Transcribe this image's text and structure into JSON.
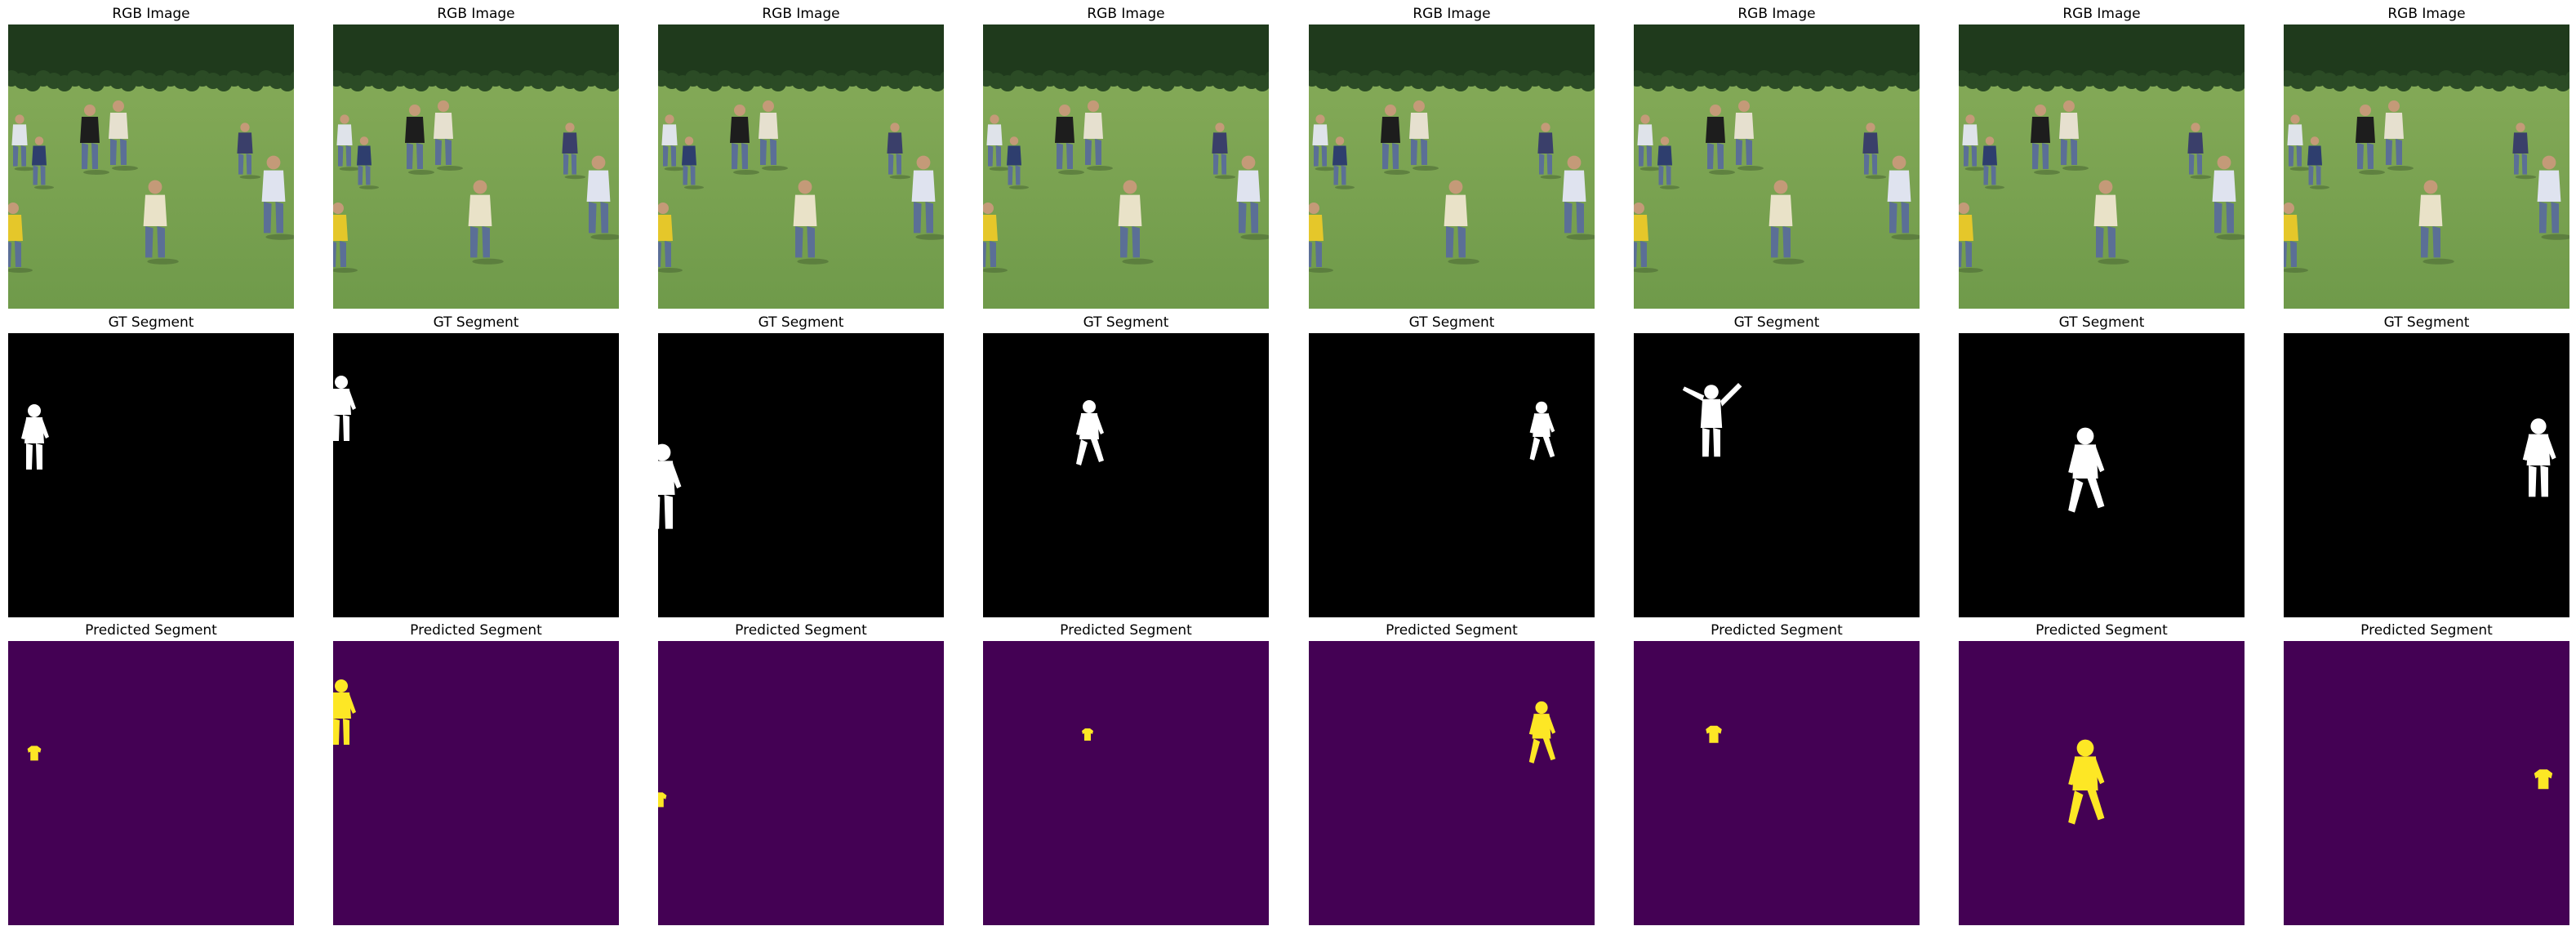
{
  "figure": {
    "row_titles": [
      "RGB Image",
      "GT Segment",
      "Predicted Segment"
    ],
    "columns": 8,
    "colors": {
      "gt_background": "#000000",
      "gt_mask": "#ffffff",
      "pred_background": "#440154",
      "pred_mask": "#fde725",
      "grass": "#6f9a4a",
      "trees": "#1f3a1c"
    }
  }
}
